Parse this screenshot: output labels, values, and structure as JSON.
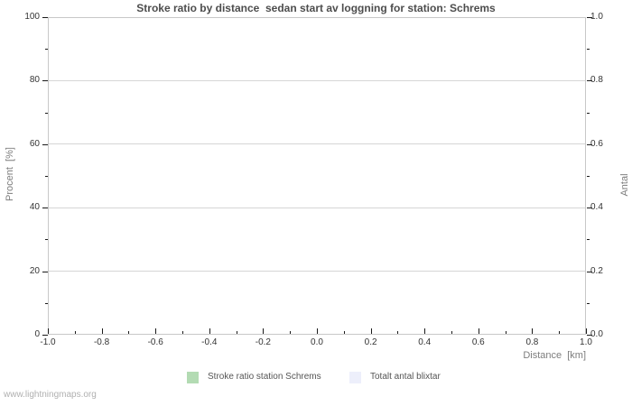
{
  "title": "Stroke ratio by distance  sedan start av loggning for station: Schrems",
  "watermark": "www.lightningmaps.org",
  "axes": {
    "left": {
      "title": "Procent  [%]",
      "ticks": [
        "100",
        "80",
        "60",
        "40",
        "20",
        "0"
      ],
      "range": [
        0,
        100
      ]
    },
    "right": {
      "title": "Antal",
      "ticks": [
        "1.0",
        "0.8",
        "0.6",
        "0.4",
        "0.2",
        "0.0"
      ],
      "range": [
        0.0,
        1.0
      ]
    },
    "bottom": {
      "title": "Distance  [km]",
      "ticks": [
        "-1.0",
        "-0.8",
        "-0.6",
        "-0.4",
        "-0.2",
        "0.0",
        "0.2",
        "0.4",
        "0.6",
        "0.8",
        "1.0"
      ],
      "range": [
        -1.0,
        1.0
      ]
    }
  },
  "legend": [
    {
      "label": "Stroke ratio station Schrems",
      "color": "#b3dbb3"
    },
    {
      "label": "Totalt antal blixtar",
      "color": "#edeffb"
    }
  ],
  "colors": {
    "title_text": "#4d4d4d",
    "tick_label": "#333333",
    "axis_title": "#7d7d7d",
    "gridline": "#d6d6d6",
    "plot_border": "#c8c8c8",
    "tick_mark": "#1a1a1a",
    "legend_text": "#555555",
    "watermark_text": "#b0b0b0"
  },
  "chart_data": {
    "type": "bar",
    "title": "Stroke ratio by distance  sedan start av loggning for station: Schrems",
    "xlabel": "Distance  [km]",
    "ylabel_left": "Procent  [%]",
    "ylabel_right": "Antal",
    "xlim": [
      -1.0,
      1.0
    ],
    "ylim_left": [
      0,
      100
    ],
    "ylim_right": [
      0.0,
      1.0
    ],
    "x_major_tick_step": 0.2,
    "x_minor_tick_step": 0.1,
    "y_left_major_tick_step": 20,
    "y_left_minor_tick_step": 10,
    "grid": "horizontal-major-only",
    "legend_position": "bottom-center",
    "series": [
      {
        "name": "Stroke ratio station Schrems",
        "color": "#b3dbb3",
        "x": [],
        "values": []
      },
      {
        "name": "Totalt antal blixtar",
        "color": "#edeffb",
        "x": [],
        "values": []
      }
    ]
  }
}
